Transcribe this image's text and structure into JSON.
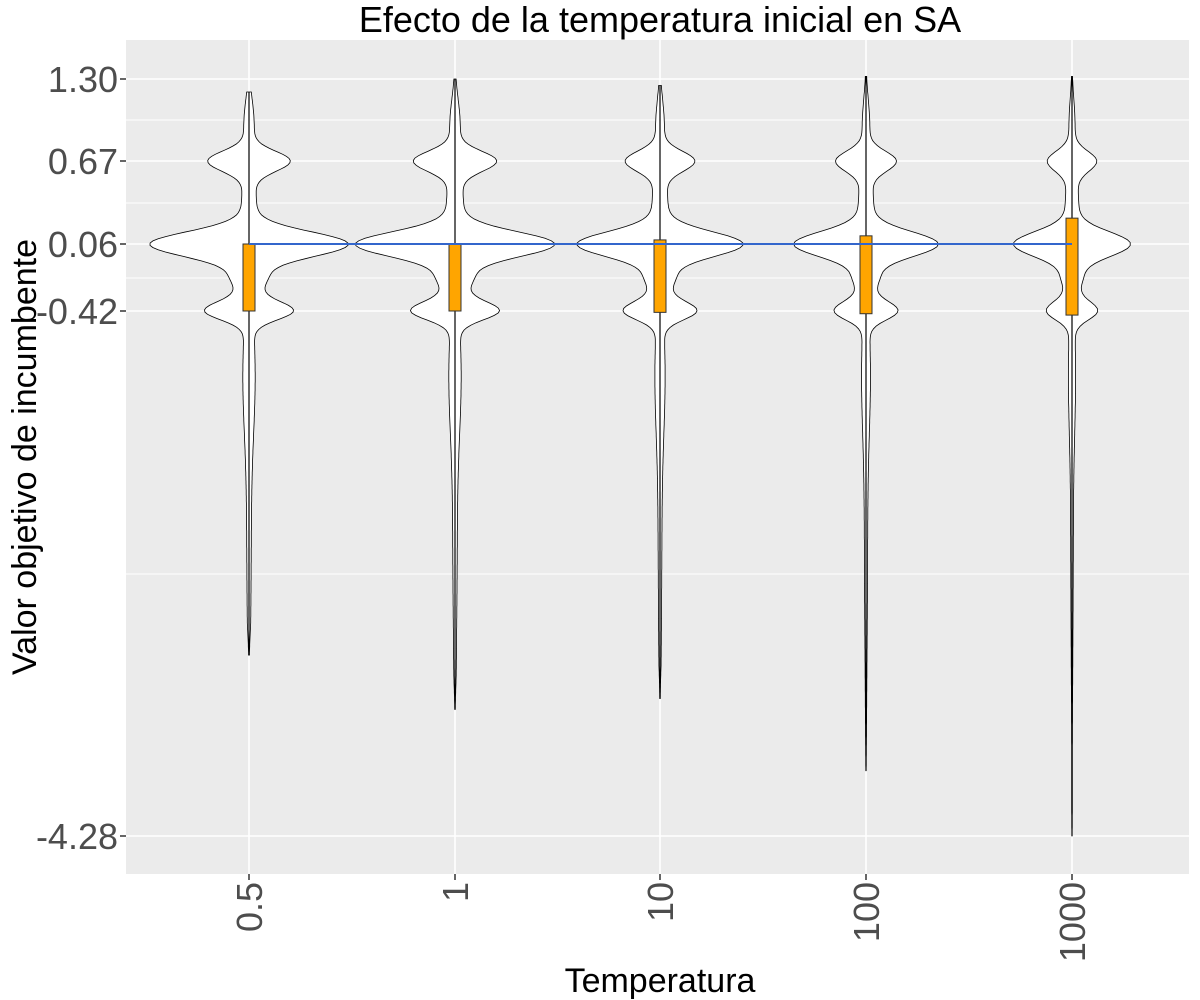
{
  "chart_data": {
    "type": "violin",
    "title": "Efecto de la temperatura inicial en SA",
    "xlabel": "Temperatura",
    "ylabel": "Valor objetivo de incumbente",
    "categories": [
      "0.5",
      "1",
      "10",
      "100",
      "1000"
    ],
    "y_ticks": [
      "1.30",
      "0.67",
      "0.06",
      "-0.42",
      "-4.28"
    ],
    "ylim": [
      -4.55,
      1.6
    ],
    "grid": true,
    "series": [
      {
        "values_stats": [
          {
            "min": -2.95,
            "q1": -0.42,
            "median": -0.2,
            "q3": 0.06,
            "max": 1.2
          },
          {
            "min": -3.35,
            "q1": -0.42,
            "median": -0.2,
            "q3": 0.06,
            "max": 1.3
          },
          {
            "min": -3.27,
            "q1": -0.43,
            "median": -0.2,
            "q3": 0.09,
            "max": 1.25
          },
          {
            "min": -3.8,
            "q1": -0.44,
            "median": -0.2,
            "q3": 0.12,
            "max": 1.32
          },
          {
            "min": -4.28,
            "q1": -0.45,
            "median": -0.2,
            "q3": 0.25,
            "max": 1.32
          }
        ]
      }
    ],
    "reference_line": {
      "y": 0.06,
      "color": "#3366cc"
    },
    "colors": {
      "panel_bg": "#ebebeb",
      "grid": "#ffffff",
      "violin_fill": "#ffffff",
      "violin_stroke": "#000000",
      "box_fill": "#ffa500",
      "reference": "#3366cc"
    }
  }
}
